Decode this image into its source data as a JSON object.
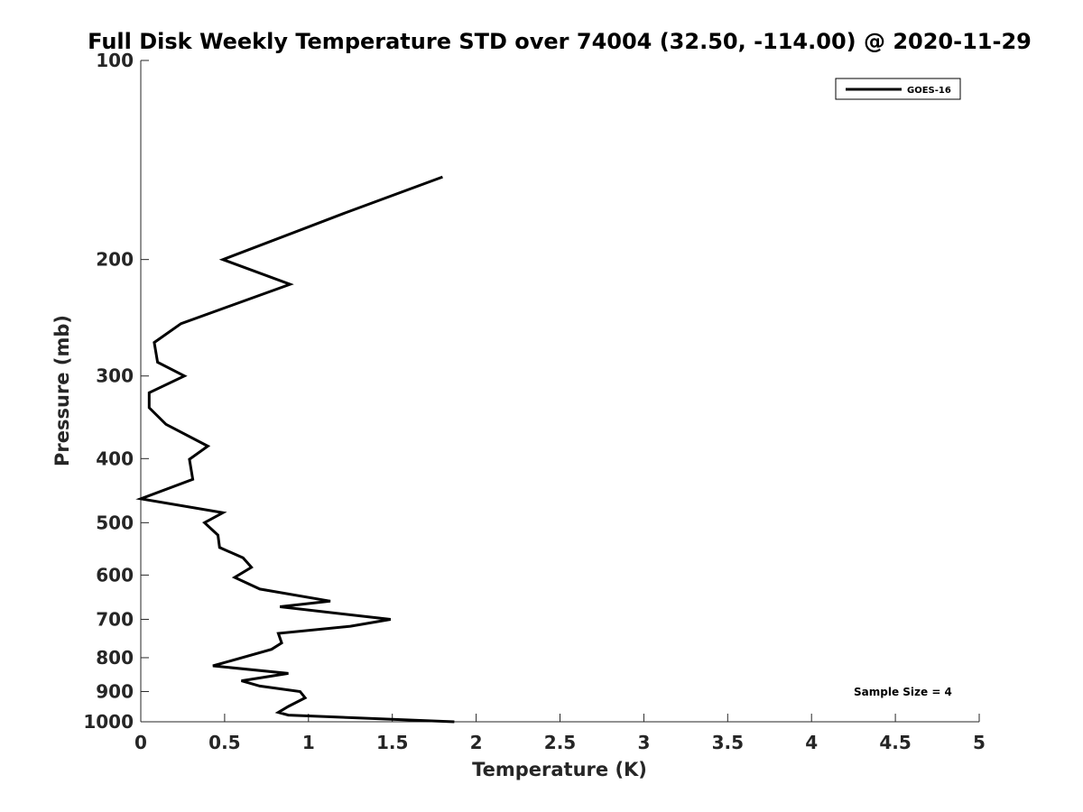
{
  "chart_data": {
    "type": "line",
    "title": "Full Disk Weekly Temperature STD over 74004 (32.50, -114.00) @ 2020-11-29",
    "xlabel": "Temperature (K)",
    "ylabel": "Pressure (mb)",
    "xlim": [
      0,
      5
    ],
    "ylim": [
      100,
      1000
    ],
    "y_scale": "log",
    "y_reversed": true,
    "x_ticks": [
      "0",
      "0.5",
      "1",
      "1.5",
      "2",
      "2.5",
      "3",
      "3.5",
      "4",
      "4.5",
      "5"
    ],
    "y_ticks": [
      "100",
      "200",
      "300",
      "400",
      "500",
      "600",
      "700",
      "800",
      "900",
      "1000"
    ],
    "grid": false,
    "legend_position": "top-right",
    "series": [
      {
        "name": "GOES-16",
        "color": "#000000",
        "points": [
          {
            "x": 1.8,
            "p": 150
          },
          {
            "x": 1.22,
            "p": 170
          },
          {
            "x": 0.49,
            "p": 200
          },
          {
            "x": 0.89,
            "p": 218
          },
          {
            "x": 0.24,
            "p": 250
          },
          {
            "x": 0.08,
            "p": 267
          },
          {
            "x": 0.1,
            "p": 286
          },
          {
            "x": 0.26,
            "p": 300
          },
          {
            "x": 0.05,
            "p": 318
          },
          {
            "x": 0.05,
            "p": 335
          },
          {
            "x": 0.15,
            "p": 355
          },
          {
            "x": 0.4,
            "p": 383
          },
          {
            "x": 0.29,
            "p": 401
          },
          {
            "x": 0.31,
            "p": 430
          },
          {
            "x": 0.0,
            "p": 460
          },
          {
            "x": 0.49,
            "p": 483
          },
          {
            "x": 0.38,
            "p": 500
          },
          {
            "x": 0.46,
            "p": 522
          },
          {
            "x": 0.47,
            "p": 545
          },
          {
            "x": 0.61,
            "p": 565
          },
          {
            "x": 0.66,
            "p": 584
          },
          {
            "x": 0.56,
            "p": 605
          },
          {
            "x": 0.71,
            "p": 630
          },
          {
            "x": 1.13,
            "p": 657
          },
          {
            "x": 0.83,
            "p": 670
          },
          {
            "x": 1.49,
            "p": 700
          },
          {
            "x": 1.25,
            "p": 717
          },
          {
            "x": 0.82,
            "p": 735
          },
          {
            "x": 0.84,
            "p": 760
          },
          {
            "x": 0.78,
            "p": 777
          },
          {
            "x": 0.43,
            "p": 823
          },
          {
            "x": 0.88,
            "p": 845
          },
          {
            "x": 0.6,
            "p": 867
          },
          {
            "x": 0.71,
            "p": 883
          },
          {
            "x": 0.95,
            "p": 900
          },
          {
            "x": 0.98,
            "p": 920
          },
          {
            "x": 0.88,
            "p": 948
          },
          {
            "x": 0.82,
            "p": 968
          },
          {
            "x": 0.88,
            "p": 977
          },
          {
            "x": 1.87,
            "p": 1000
          }
        ]
      }
    ],
    "annotation": "Sample Size = 4"
  }
}
